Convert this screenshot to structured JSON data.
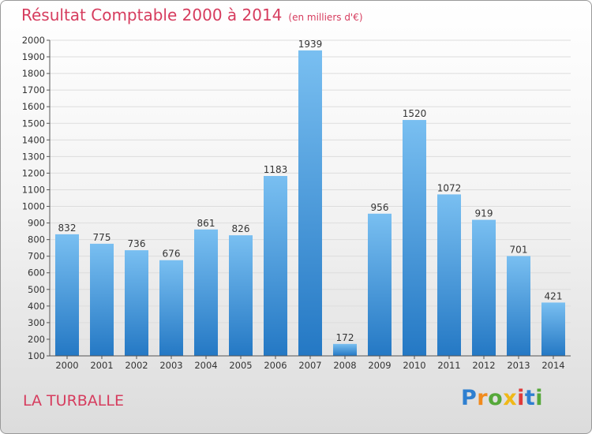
{
  "header": {
    "title": "Résultat Comptable 2000 à 2014",
    "subtitle": "(en milliers d'€)"
  },
  "footer": {
    "city": "LA TURBALLE",
    "logo": {
      "letters": [
        "P",
        "r",
        "o",
        "x",
        "i",
        "t",
        "i"
      ],
      "colors": [
        "#2e7fd0",
        "#f18a1c",
        "#55a83a",
        "#f0b817",
        "#e03a3a",
        "#2e7fd0",
        "#55a83a"
      ]
    }
  },
  "colors": {
    "bar_light": "#79bff1",
    "bar_dark": "#2478c4",
    "grid": "#dddddd",
    "axis": "#555555",
    "text": "#333333"
  },
  "chart_data": {
    "type": "bar",
    "categories": [
      "2000",
      "2001",
      "2002",
      "2003",
      "2004",
      "2005",
      "2006",
      "2007",
      "2008",
      "2009",
      "2010",
      "2011",
      "2012",
      "2013",
      "2014"
    ],
    "values": [
      832,
      775,
      736,
      676,
      861,
      826,
      1183,
      1939,
      172,
      956,
      1520,
      1072,
      919,
      701,
      421
    ],
    "title": "Résultat Comptable 2000 à 2014",
    "xlabel": "",
    "ylabel": "",
    "ylim": [
      100,
      2000
    ],
    "yticks": [
      100,
      200,
      300,
      400,
      500,
      600,
      700,
      800,
      900,
      1000,
      1100,
      1200,
      1300,
      1400,
      1500,
      1600,
      1700,
      1800,
      1900,
      2000
    ],
    "grid": true
  }
}
